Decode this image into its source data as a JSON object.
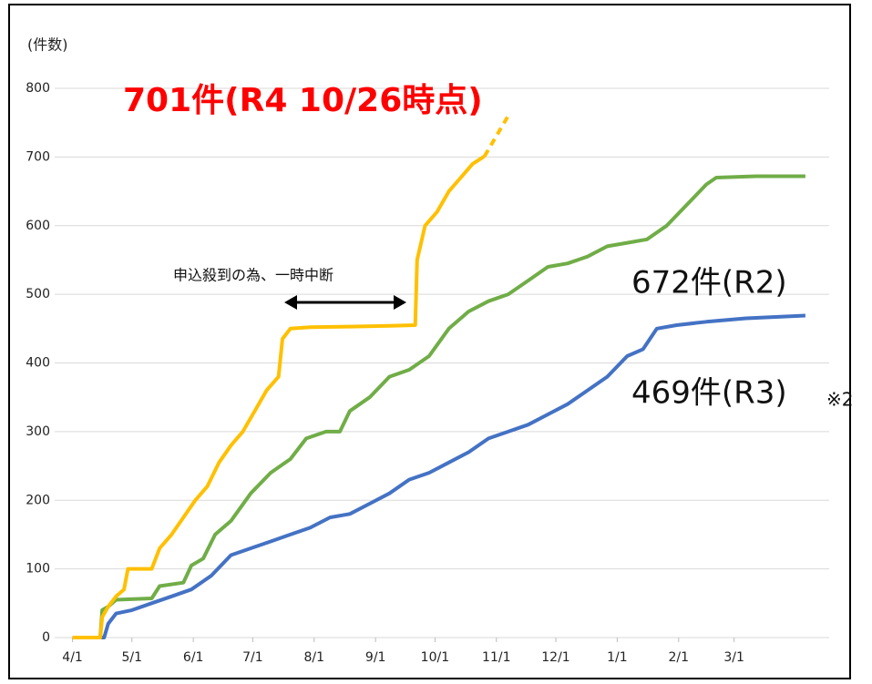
{
  "chart_data": {
    "type": "line",
    "y_label": "(件数)",
    "ylim": [
      0,
      800
    ],
    "yticks": [
      0,
      100,
      200,
      300,
      400,
      500,
      600,
      700,
      800
    ],
    "xlim": [
      -9,
      382
    ],
    "xticks": [
      {
        "value": 0,
        "label": "4/1"
      },
      {
        "value": 30,
        "label": "5/1"
      },
      {
        "value": 61,
        "label": "6/1"
      },
      {
        "value": 91,
        "label": "7/1"
      },
      {
        "value": 122,
        "label": "8/1"
      },
      {
        "value": 153,
        "label": "9/1"
      },
      {
        "value": 183,
        "label": "10/1"
      },
      {
        "value": 214,
        "label": "11/1"
      },
      {
        "value": 244,
        "label": "12/1"
      },
      {
        "value": 275,
        "label": "1/1"
      },
      {
        "value": 306,
        "label": "2/1"
      },
      {
        "value": 334,
        "label": "3/1"
      }
    ],
    "grid": true,
    "series": [
      {
        "color": "#70ad47",
        "x": [
          0,
          14,
          15,
          18,
          22,
          40,
          44,
          56,
          60,
          66,
          72,
          80,
          90,
          100,
          110,
          118,
          128,
          135,
          140,
          150,
          160,
          170,
          180,
          190,
          200,
          210,
          220,
          230,
          240,
          250,
          260,
          270,
          280,
          290,
          300,
          310,
          320,
          325,
          345,
          370
        ],
        "values": [
          0,
          0,
          40,
          45,
          55,
          57,
          75,
          80,
          105,
          115,
          150,
          170,
          210,
          240,
          260,
          290,
          300,
          300,
          330,
          350,
          380,
          390,
          410,
          450,
          475,
          490,
          500,
          520,
          540,
          545,
          555,
          570,
          575,
          580,
          600,
          630,
          660,
          670,
          672,
          672
        ]
      },
      {
        "color": "#4472c4",
        "x": [
          0,
          16,
          18,
          22,
          30,
          40,
          50,
          60,
          70,
          80,
          90,
          100,
          110,
          120,
          130,
          140,
          150,
          160,
          170,
          180,
          190,
          200,
          210,
          220,
          230,
          240,
          250,
          260,
          270,
          280,
          288,
          295,
          305,
          320,
          340,
          370
        ],
        "values": [
          0,
          0,
          20,
          35,
          40,
          50,
          60,
          70,
          90,
          120,
          130,
          140,
          150,
          160,
          175,
          180,
          195,
          210,
          230,
          240,
          255,
          270,
          290,
          300,
          310,
          325,
          340,
          360,
          380,
          410,
          420,
          450,
          455,
          460,
          465,
          469
        ]
      },
      {
        "color": "#ffc000",
        "x": [
          0,
          14,
          15,
          18,
          22,
          26,
          28,
          40,
          44,
          50,
          56,
          62,
          68,
          74,
          80,
          86,
          92,
          98,
          104,
          106,
          110,
          120,
          140,
          160,
          173,
          174,
          178,
          184,
          190,
          196,
          202,
          208
        ],
        "values": [
          0,
          0,
          30,
          45,
          60,
          70,
          100,
          100,
          130,
          150,
          175,
          200,
          220,
          255,
          280,
          300,
          330,
          360,
          380,
          435,
          450,
          452,
          453,
          454,
          455,
          550,
          600,
          620,
          650,
          670,
          690,
          701
        ]
      },
      {
        "color": "#ffc000",
        "dashed": true,
        "x": [
          208,
          220
        ],
        "values": [
          701,
          760
        ]
      }
    ],
    "annotations": [
      "701件(R4 10/26時点)",
      "672件(R2)",
      "469件(R3)",
      "※2",
      "申込殺到の為、一時中断"
    ]
  }
}
